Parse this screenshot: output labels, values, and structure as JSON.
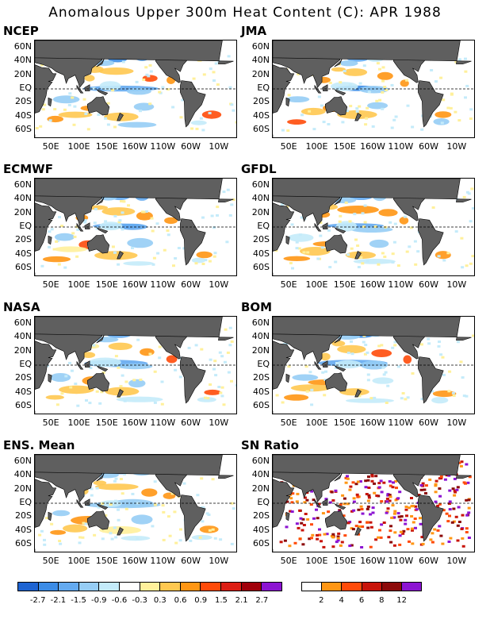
{
  "title": "Anomalous Upper 300m Heat Content (C): APR 1988",
  "panels": [
    {
      "name": "NCEP"
    },
    {
      "name": "JMA"
    },
    {
      "name": "ECMWF"
    },
    {
      "name": "GFDL"
    },
    {
      "name": "NASA"
    },
    {
      "name": "BOM"
    },
    {
      "name": "ENS. Mean"
    },
    {
      "name": "SN Ratio"
    }
  ],
  "lat_labels": [
    "60N",
    "40N",
    "20N",
    "EQ",
    "20S",
    "40S",
    "60S"
  ],
  "lon_labels": [
    "50E",
    "100E",
    "150E",
    "160W",
    "110W",
    "60W",
    "10W"
  ],
  "anomaly_colorbar": {
    "colors": [
      "#1e64d2",
      "#3c8ce6",
      "#64aaf0",
      "#96cdf5",
      "#c4ebfa",
      "#ffffff",
      "#fff09b",
      "#ffc850",
      "#ff9614",
      "#ff4b0a",
      "#dc1e14",
      "#a0000a",
      "#8c14d2"
    ],
    "labels": [
      "-2.7",
      "-2.1",
      "-1.5",
      "-0.9",
      "-0.6",
      "-0.3",
      "0.3",
      "0.6",
      "0.9",
      "1.5",
      "2.1",
      "2.7"
    ]
  },
  "sn_colorbar": {
    "colors": [
      "#ffffff",
      "#ff9614",
      "#ff4b0a",
      "#c8140a",
      "#8c0a0a",
      "#8c14d2"
    ],
    "labels": [
      "2",
      "4",
      "6",
      "8",
      "12"
    ]
  },
  "colors": {
    "land": "#5f5f5f",
    "background": "#ffffff"
  }
}
